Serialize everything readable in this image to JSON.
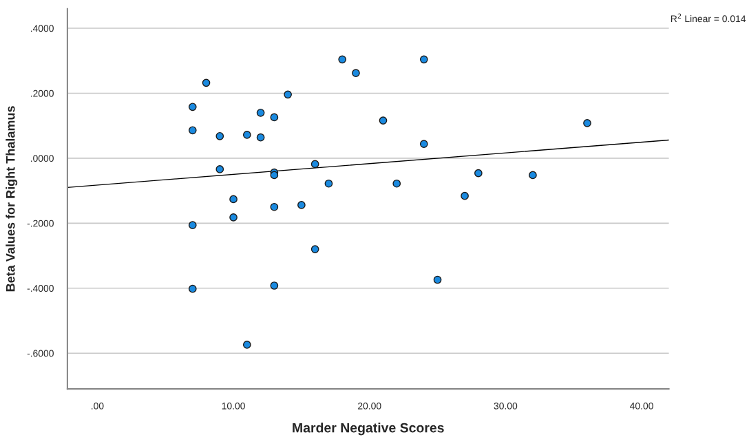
{
  "chart_data": {
    "type": "scatter",
    "xlabel": "Marder Negative Scores",
    "ylabel": "Beta Values for Right Thalamus",
    "annotations": [
      "R$^{2}$ Linear = 0.014"
    ],
    "xlim": [
      -2.2,
      42
    ],
    "ylim": [
      -0.71,
      0.46
    ],
    "xticks": [
      {
        "value": 0,
        "label": ".00"
      },
      {
        "value": 10,
        "label": "10.00"
      },
      {
        "value": 20,
        "label": "20.00"
      },
      {
        "value": 30,
        "label": "30.00"
      },
      {
        "value": 40,
        "label": "40.00"
      }
    ],
    "yticks": [
      {
        "value": -0.6,
        "label": "-.6000"
      },
      {
        "value": -0.4,
        "label": "-.4000"
      },
      {
        "value": -0.2,
        "label": "-.2000"
      },
      {
        "value": 0,
        "label": ".0000"
      },
      {
        "value": 0.2,
        "label": ".2000"
      },
      {
        "value": 0.4,
        "label": ".4000"
      }
    ],
    "grid": "y",
    "marker": "circle",
    "series": [
      {
        "color": "#1a8ae0",
        "x": [
          7,
          7,
          7,
          7,
          8,
          9,
          9,
          10,
          10,
          11,
          11,
          12,
          12,
          13,
          13,
          13,
          13,
          13,
          14,
          15,
          16,
          16,
          17,
          18,
          19,
          21,
          22,
          24,
          24,
          25,
          27,
          28,
          32,
          36
        ],
        "values": [
          0.158,
          0.086,
          -0.206,
          -0.402,
          0.232,
          0.068,
          -0.034,
          -0.126,
          -0.182,
          0.072,
          -0.574,
          0.14,
          0.064,
          0.126,
          -0.044,
          -0.052,
          -0.15,
          -0.392,
          0.196,
          -0.144,
          -0.018,
          -0.28,
          -0.078,
          0.304,
          0.262,
          0.116,
          -0.078,
          0.304,
          0.044,
          -0.374,
          -0.116,
          -0.046,
          -0.052,
          0.108
        ]
      },
      {
        "type": "line",
        "color": "#000000",
        "marker": "none",
        "x": [
          -2.2,
          42
        ],
        "values": [
          -0.09,
          0.056
        ]
      }
    ]
  }
}
